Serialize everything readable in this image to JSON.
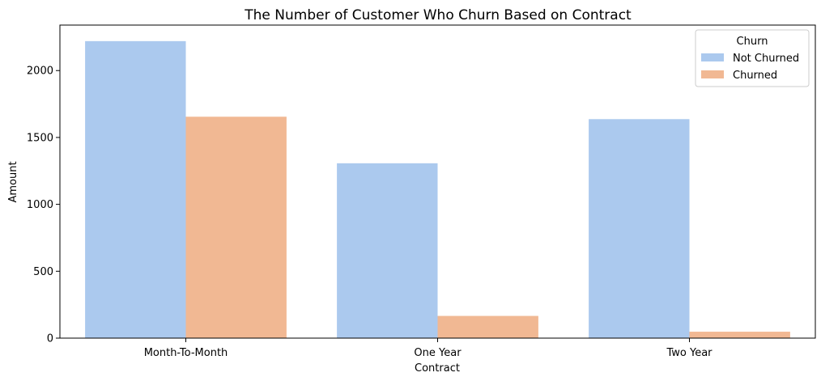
{
  "chart_data": {
    "type": "bar",
    "title": "The Number of Customer Who Churn Based on Contract",
    "xlabel": "Contract",
    "ylabel": "Amount",
    "categories": [
      "Month-To-Month",
      "One Year",
      "Two Year"
    ],
    "series": [
      {
        "name": "Not Churned",
        "values": [
          2220,
          1307,
          1637
        ],
        "color": "#abc9ee"
      },
      {
        "name": "Churned",
        "values": [
          1655,
          166,
          48
        ],
        "color": "#f1b893"
      }
    ],
    "ylim": [
      0,
      2340
    ],
    "yticks": [
      0,
      500,
      1000,
      1500,
      2000
    ],
    "grid": false,
    "legend": {
      "title": "Churn",
      "placement": "top-right"
    }
  }
}
